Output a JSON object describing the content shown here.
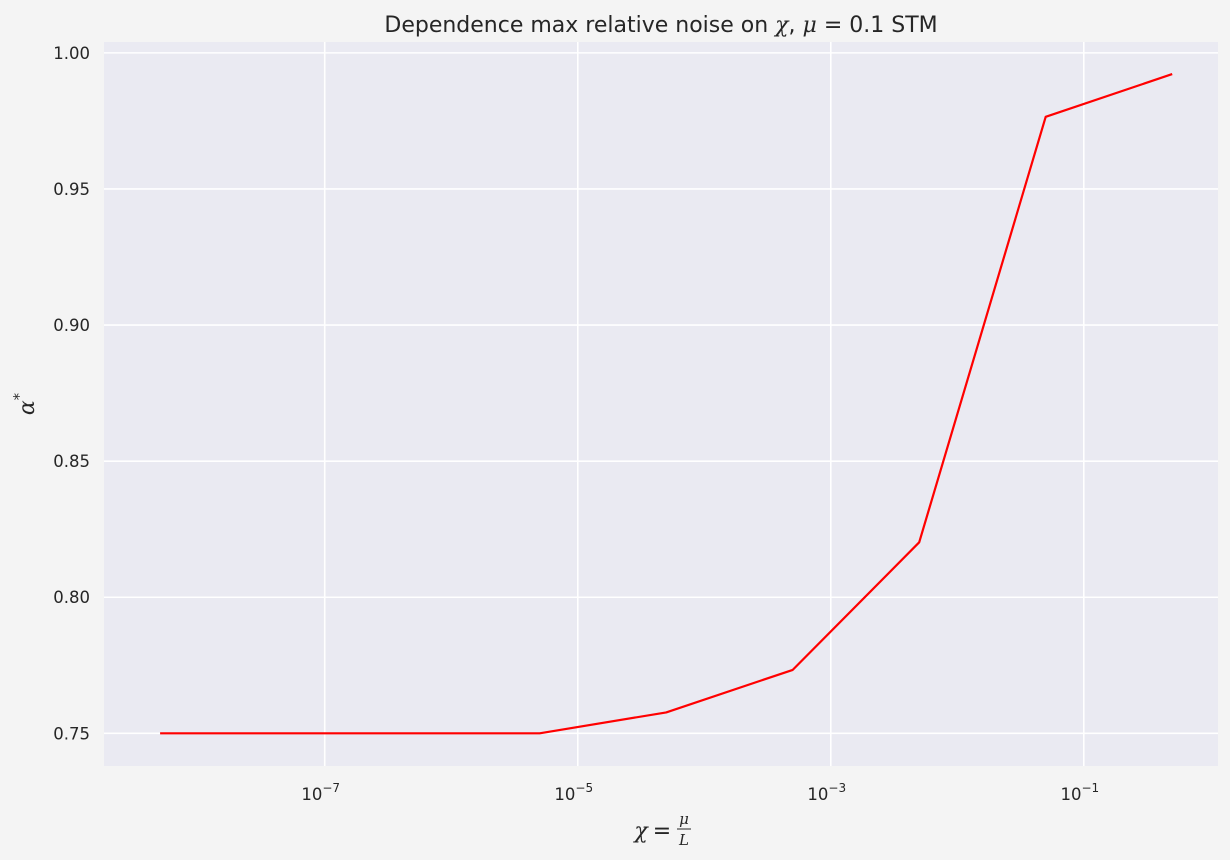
{
  "chart_data": {
    "type": "line",
    "title": "Dependence max relative noise on χ, μ = 0.1  STM",
    "title_parts": {
      "prefix": "Dependence max relative noise on ",
      "chi": "χ",
      "comma": ", ",
      "mu": "μ",
      "equals": " = 0.1  STM"
    },
    "xlabel": "χ = μ/L",
    "xlabel_parts": {
      "chi": "χ",
      "equals": "=",
      "numerator": "μ",
      "denominator": "L"
    },
    "ylabel": "α*",
    "ylabel_parts": {
      "alpha": "α",
      "star": "*"
    },
    "x_scale": "log",
    "xlim": [
      1.8e-09,
      1.15
    ],
    "ylim": [
      0.738,
      1.004
    ],
    "x_ticks": [
      {
        "value": 1e-07,
        "base": "10",
        "exp": "−7"
      },
      {
        "value": 1e-05,
        "base": "10",
        "exp": "−5"
      },
      {
        "value": 0.001,
        "base": "10",
        "exp": "−3"
      },
      {
        "value": 0.1,
        "base": "10",
        "exp": "−1"
      }
    ],
    "y_ticks": [
      {
        "value": 0.75,
        "label": "0.75"
      },
      {
        "value": 0.8,
        "label": "0.80"
      },
      {
        "value": 0.85,
        "label": "0.85"
      },
      {
        "value": 0.9,
        "label": "0.90"
      },
      {
        "value": 0.95,
        "label": "0.95"
      },
      {
        "value": 1.0,
        "label": "1.00"
      }
    ],
    "grid": true,
    "series": [
      {
        "color": "#ff0000",
        "x": [
          5e-09,
          5e-06,
          5e-05,
          0.0005,
          0.005,
          0.05,
          0.5
        ],
        "y": [
          0.75,
          0.75,
          0.7577,
          0.7733,
          0.8202,
          0.9765,
          0.9922
        ]
      }
    ],
    "colors": {
      "background": "#f4f4f4",
      "plot_area": "#eaeaf2",
      "grid": "#ffffff",
      "text": "#262626"
    }
  }
}
